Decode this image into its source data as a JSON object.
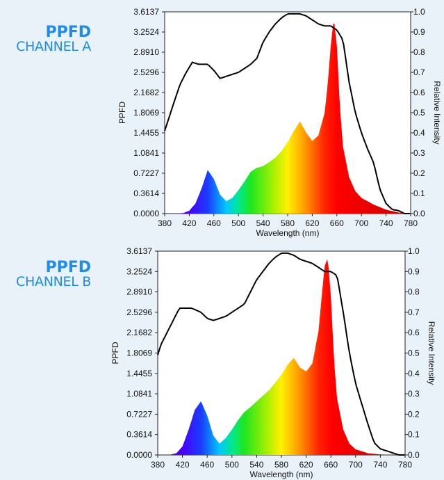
{
  "chart_data": [
    {
      "type": "area",
      "label_main": "PPFD",
      "label_sub": "CHANNEL A",
      "xlabel": "Wavelength (nm)",
      "ylabel": "PPFD",
      "y2label": "Relative Intensity",
      "xlim": [
        380,
        780
      ],
      "ylim": [
        0,
        3.6137
      ],
      "y2lim": [
        0,
        1.0
      ],
      "x_ticks": [
        "380",
        "420",
        "460",
        "500",
        "540",
        "580",
        "620",
        "660",
        "700",
        "740",
        "780"
      ],
      "y_ticks": [
        "0.0000",
        "0.3614",
        "0.7227",
        "1.0841",
        "1.4455",
        "1.8069",
        "2.1682",
        "2.5296",
        "2.8910",
        "3.2524",
        "3.6137"
      ],
      "y2_ticks": [
        "0.0",
        "0.1",
        "0.2",
        "0.3",
        "0.4",
        "0.5",
        "0.6",
        "0.7",
        "0.8",
        "0.9",
        "1.0"
      ],
      "grid": false,
      "spectrum": {
        "x": [
          380,
          400,
          410,
          420,
          430,
          440,
          450,
          460,
          470,
          480,
          490,
          500,
          510,
          520,
          530,
          540,
          550,
          560,
          570,
          580,
          590,
          600,
          610,
          620,
          630,
          640,
          645,
          650,
          655,
          660,
          665,
          670,
          680,
          690,
          700,
          720,
          740,
          760,
          780
        ],
        "y": [
          0,
          0.001,
          0.01,
          0.05,
          0.18,
          0.45,
          0.78,
          0.62,
          0.34,
          0.22,
          0.28,
          0.42,
          0.58,
          0.75,
          0.82,
          0.85,
          0.92,
          1.0,
          1.12,
          1.28,
          1.48,
          1.65,
          1.45,
          1.3,
          1.4,
          1.8,
          2.3,
          3.0,
          3.5,
          3.0,
          1.9,
          1.2,
          0.65,
          0.4,
          0.28,
          0.16,
          0.07,
          0.02,
          0
        ]
      },
      "relative_intensity": {
        "x": [
          380,
          395,
          405,
          415,
          425,
          435,
          450,
          460,
          470,
          480,
          490,
          500,
          510,
          520,
          530,
          540,
          550,
          560,
          570,
          580,
          590,
          600,
          610,
          620,
          630,
          640,
          650,
          660,
          670,
          680,
          690,
          700,
          710,
          720,
          730,
          740,
          750,
          760,
          770,
          780
        ],
        "y": [
          0.41,
          0.55,
          0.64,
          0.7,
          0.75,
          0.74,
          0.74,
          0.71,
          0.67,
          0.68,
          0.69,
          0.7,
          0.72,
          0.74,
          0.77,
          0.85,
          0.9,
          0.94,
          0.97,
          0.99,
          0.99,
          0.99,
          0.98,
          0.96,
          0.94,
          0.93,
          0.93,
          0.91,
          0.86,
          0.65,
          0.5,
          0.4,
          0.32,
          0.25,
          0.12,
          0.05,
          0.02,
          0.015,
          0.0,
          0.0
        ]
      }
    },
    {
      "type": "area",
      "label_main": "PPFD",
      "label_sub": "CHANNEL B",
      "xlabel": "Wavelength (nm)",
      "ylabel": "PPFD",
      "y2label": "Relative Intensity",
      "xlim": [
        380,
        780
      ],
      "ylim": [
        0,
        3.6137
      ],
      "y2lim": [
        0,
        1.0
      ],
      "x_ticks": [
        "380",
        "420",
        "460",
        "500",
        "540",
        "580",
        "620",
        "660",
        "700",
        "740",
        "780"
      ],
      "y_ticks": [
        "0.0000",
        "0.3614",
        "0.7227",
        "1.0841",
        "1.4455",
        "1.8069",
        "2.1682",
        "2.5296",
        "2.8910",
        "3.2524",
        "3.6137"
      ],
      "y2_ticks": [
        "0.0",
        "0.1",
        "0.2",
        "0.3",
        "0.4",
        "0.5",
        "0.6",
        "0.7",
        "0.8",
        "0.9",
        "1.0"
      ],
      "grid": false,
      "spectrum": {
        "x": [
          380,
          400,
          410,
          420,
          430,
          440,
          450,
          460,
          470,
          480,
          490,
          500,
          510,
          520,
          530,
          540,
          550,
          560,
          570,
          580,
          590,
          600,
          610,
          620,
          630,
          640,
          645,
          650,
          655,
          660,
          665,
          670,
          680,
          690,
          700,
          720,
          740,
          760,
          780
        ],
        "y": [
          0,
          0.005,
          0.03,
          0.15,
          0.45,
          0.8,
          0.95,
          0.7,
          0.34,
          0.2,
          0.3,
          0.45,
          0.62,
          0.76,
          0.85,
          0.95,
          1.05,
          1.15,
          1.28,
          1.42,
          1.6,
          1.72,
          1.55,
          1.48,
          1.62,
          2.2,
          2.8,
          3.35,
          3.5,
          2.8,
          1.7,
          1.0,
          0.45,
          0.2,
          0.1,
          0.03,
          0.01,
          0,
          0
        ]
      },
      "relative_intensity": {
        "x": [
          380,
          385,
          395,
          405,
          415,
          425,
          435,
          450,
          460,
          470,
          480,
          490,
          500,
          510,
          520,
          530,
          540,
          550,
          560,
          570,
          580,
          590,
          600,
          610,
          620,
          630,
          640,
          650,
          660,
          670,
          680,
          690,
          700,
          710,
          720,
          730,
          740,
          750,
          760,
          770,
          780
        ],
        "y": [
          0.49,
          0.54,
          0.6,
          0.66,
          0.72,
          0.72,
          0.72,
          0.7,
          0.67,
          0.66,
          0.67,
          0.68,
          0.7,
          0.72,
          0.74,
          0.8,
          0.86,
          0.9,
          0.94,
          0.97,
          0.99,
          0.99,
          0.98,
          0.96,
          0.95,
          0.94,
          0.92,
          0.9,
          0.9,
          0.88,
          0.7,
          0.5,
          0.35,
          0.25,
          0.15,
          0.06,
          0.03,
          0.02,
          0.01,
          0.0,
          0.0
        ]
      }
    }
  ]
}
